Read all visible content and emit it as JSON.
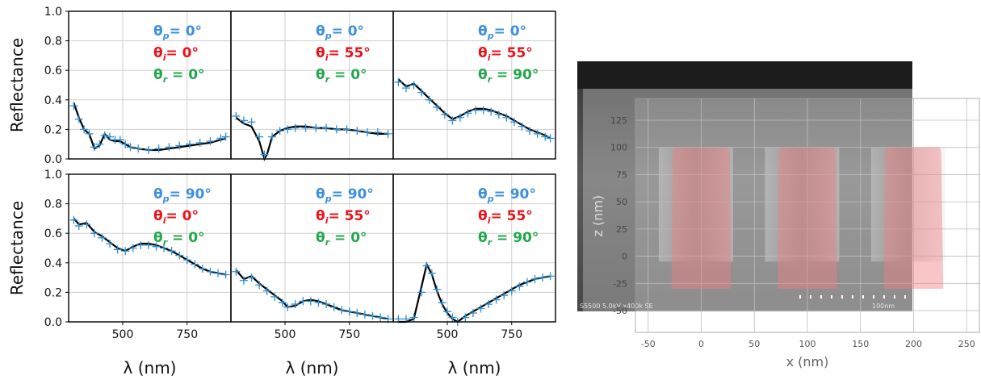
{
  "colors": {
    "measured": "#2f8fd3",
    "simulated": "#000000",
    "theta_p": "#3d8fe0",
    "theta_i": "#e8141b",
    "theta_r": "#22a84a",
    "profile_fill": "#f08080",
    "sem_bg": "#4a4a4a"
  },
  "grid": {
    "x_label": "λ (nm)",
    "y_label": "Reflectance",
    "x_ticks": [
      "500",
      "750"
    ],
    "y_ticks": [
      "0.0",
      "0.2",
      "0.4",
      "0.6",
      "0.8",
      "1.0"
    ]
  },
  "chart_data": [
    {
      "type": "line",
      "panel": "top-left",
      "xlim": [
        290,
        920
      ],
      "ylim": [
        0,
        1
      ],
      "legend": {
        "p": "θ_p= 0°",
        "i": "θ_i= 0°",
        "r": "θ_r = 0°"
      },
      "series": [
        {
          "name": "",
          "style": "markers",
          "x": [
            310,
            330,
            350,
            370,
            390,
            410,
            430,
            450,
            470,
            490,
            510,
            530,
            560,
            600,
            640,
            680,
            720,
            760,
            800,
            840,
            880,
            900
          ],
          "y": [
            0.36,
            0.27,
            0.2,
            0.17,
            0.08,
            0.1,
            0.16,
            0.15,
            0.13,
            0.13,
            0.1,
            0.08,
            0.07,
            0.06,
            0.07,
            0.08,
            0.09,
            0.1,
            0.11,
            0.12,
            0.14,
            0.15
          ]
        },
        {
          "name": "",
          "style": "line",
          "x": [
            310,
            330,
            350,
            370,
            390,
            410,
            430,
            450,
            470,
            490,
            510,
            530,
            560,
            600,
            640,
            680,
            720,
            760,
            800,
            840,
            880,
            900
          ],
          "y": [
            0.38,
            0.28,
            0.2,
            0.17,
            0.07,
            0.09,
            0.17,
            0.13,
            0.12,
            0.12,
            0.1,
            0.08,
            0.07,
            0.06,
            0.06,
            0.07,
            0.08,
            0.09,
            0.1,
            0.11,
            0.13,
            0.14
          ]
        }
      ]
    },
    {
      "type": "line",
      "panel": "top-middle",
      "xlim": [
        290,
        920
      ],
      "ylim": [
        0,
        1
      ],
      "legend": {
        "p": "θ_p= 0°",
        "i": "θ_i= 55°",
        "r": "θ_r = 0°"
      },
      "series": [
        {
          "name": "",
          "style": "markers",
          "x": [
            310,
            340,
            370,
            400,
            420,
            450,
            480,
            510,
            540,
            580,
            620,
            660,
            700,
            740,
            780,
            820,
            860,
            900
          ],
          "y": [
            0.29,
            0.26,
            0.25,
            0.15,
            0.03,
            0.15,
            0.19,
            0.2,
            0.21,
            0.21,
            0.21,
            0.21,
            0.2,
            0.2,
            0.19,
            0.18,
            0.18,
            0.17
          ]
        },
        {
          "name": "",
          "style": "line",
          "x": [
            310,
            340,
            370,
            400,
            420,
            430,
            450,
            480,
            510,
            540,
            580,
            620,
            660,
            700,
            740,
            780,
            820,
            860,
            900
          ],
          "y": [
            0.28,
            0.24,
            0.22,
            0.12,
            0.0,
            0.03,
            0.15,
            0.19,
            0.21,
            0.22,
            0.22,
            0.21,
            0.21,
            0.2,
            0.2,
            0.19,
            0.18,
            0.17,
            0.17
          ]
        }
      ]
    },
    {
      "type": "line",
      "panel": "top-right",
      "xlim": [
        290,
        920
      ],
      "ylim": [
        0,
        1
      ],
      "legend": {
        "p": "θ_p= 0°",
        "i": "θ_i= 55°",
        "r": "θ_r = 90°"
      },
      "series": [
        {
          "name": "",
          "style": "markers",
          "x": [
            310,
            340,
            370,
            400,
            430,
            460,
            490,
            520,
            550,
            580,
            610,
            640,
            670,
            700,
            730,
            760,
            790,
            820,
            850,
            880,
            900
          ],
          "y": [
            0.52,
            0.48,
            0.5,
            0.45,
            0.4,
            0.35,
            0.3,
            0.26,
            0.28,
            0.31,
            0.33,
            0.33,
            0.32,
            0.3,
            0.28,
            0.25,
            0.22,
            0.19,
            0.17,
            0.15,
            0.14
          ]
        },
        {
          "name": "",
          "style": "line",
          "x": [
            310,
            340,
            370,
            400,
            430,
            460,
            490,
            520,
            550,
            580,
            610,
            640,
            670,
            700,
            730,
            760,
            790,
            820,
            850,
            880,
            900
          ],
          "y": [
            0.54,
            0.49,
            0.51,
            0.46,
            0.41,
            0.36,
            0.31,
            0.27,
            0.29,
            0.32,
            0.34,
            0.34,
            0.33,
            0.31,
            0.29,
            0.26,
            0.23,
            0.2,
            0.18,
            0.16,
            0.14
          ]
        }
      ]
    },
    {
      "type": "line",
      "panel": "bottom-left",
      "xlim": [
        290,
        920
      ],
      "ylim": [
        0,
        1
      ],
      "legend": {
        "p": "θ_p= 90°",
        "i": "θ_i= 0°",
        "r": "θ_r = 0°"
      },
      "series": [
        {
          "name": "",
          "style": "markers",
          "x": [
            310,
            330,
            360,
            390,
            420,
            450,
            480,
            510,
            540,
            570,
            600,
            630,
            660,
            690,
            720,
            750,
            780,
            810,
            840,
            870,
            900
          ],
          "y": [
            0.69,
            0.65,
            0.66,
            0.6,
            0.57,
            0.53,
            0.49,
            0.48,
            0.5,
            0.52,
            0.52,
            0.51,
            0.5,
            0.48,
            0.45,
            0.42,
            0.39,
            0.36,
            0.34,
            0.33,
            0.32
          ]
        },
        {
          "name": "",
          "style": "line",
          "x": [
            310,
            330,
            360,
            390,
            420,
            450,
            480,
            510,
            540,
            570,
            600,
            630,
            660,
            690,
            720,
            750,
            780,
            810,
            840,
            870,
            900
          ],
          "y": [
            0.7,
            0.66,
            0.67,
            0.61,
            0.58,
            0.54,
            0.5,
            0.48,
            0.51,
            0.53,
            0.53,
            0.52,
            0.5,
            0.48,
            0.45,
            0.42,
            0.39,
            0.36,
            0.34,
            0.33,
            0.32
          ]
        }
      ]
    },
    {
      "type": "line",
      "panel": "bottom-middle",
      "xlim": [
        290,
        920
      ],
      "ylim": [
        0,
        1
      ],
      "legend": {
        "p": "θ_p= 90°",
        "i": "θ_i= 55°",
        "r": "θ_r = 0°"
      },
      "series": [
        {
          "name": "",
          "style": "markers",
          "x": [
            310,
            340,
            370,
            400,
            430,
            460,
            490,
            510,
            540,
            570,
            600,
            630,
            660,
            690,
            720,
            750,
            780,
            810,
            840,
            870,
            900
          ],
          "y": [
            0.34,
            0.28,
            0.3,
            0.25,
            0.21,
            0.17,
            0.13,
            0.1,
            0.12,
            0.14,
            0.14,
            0.13,
            0.12,
            0.1,
            0.08,
            0.07,
            0.06,
            0.05,
            0.04,
            0.03,
            0.02
          ]
        },
        {
          "name": "",
          "style": "line",
          "x": [
            310,
            340,
            370,
            400,
            430,
            460,
            490,
            510,
            540,
            570,
            600,
            630,
            660,
            690,
            720,
            750,
            780,
            810,
            840,
            870,
            900
          ],
          "y": [
            0.35,
            0.29,
            0.31,
            0.26,
            0.22,
            0.18,
            0.14,
            0.1,
            0.11,
            0.14,
            0.15,
            0.14,
            0.12,
            0.1,
            0.08,
            0.07,
            0.06,
            0.05,
            0.04,
            0.03,
            0.02
          ]
        }
      ]
    },
    {
      "type": "line",
      "panel": "bottom-right",
      "xlim": [
        290,
        920
      ],
      "ylim": [
        0,
        1
      ],
      "legend": {
        "p": "θ_p= 90°",
        "i": "θ_i= 55°",
        "r": "θ_r = 90°"
      },
      "series": [
        {
          "name": "",
          "style": "markers",
          "x": [
            310,
            340,
            370,
            400,
            420,
            440,
            460,
            480,
            500,
            520,
            540,
            570,
            600,
            630,
            660,
            690,
            720,
            750,
            780,
            810,
            840,
            870,
            900
          ],
          "y": [
            0.02,
            0.02,
            0.03,
            0.2,
            0.38,
            0.33,
            0.22,
            0.13,
            0.07,
            0.03,
            0.0,
            0.03,
            0.06,
            0.09,
            0.12,
            0.15,
            0.18,
            0.21,
            0.24,
            0.27,
            0.29,
            0.3,
            0.31
          ]
        },
        {
          "name": "",
          "style": "line",
          "x": [
            310,
            340,
            370,
            400,
            420,
            440,
            460,
            480,
            500,
            520,
            540,
            570,
            600,
            630,
            660,
            690,
            720,
            750,
            780,
            810,
            840,
            870,
            900
          ],
          "y": [
            0.0,
            0.0,
            0.02,
            0.24,
            0.39,
            0.32,
            0.21,
            0.12,
            0.06,
            0.02,
            0.0,
            0.04,
            0.07,
            0.1,
            0.13,
            0.16,
            0.19,
            0.22,
            0.25,
            0.27,
            0.29,
            0.3,
            0.31
          ]
        }
      ]
    },
    {
      "type": "area",
      "panel": "profile-overlay",
      "xlabel": "x (nm)",
      "ylabel": "z (nm)",
      "xlim": [
        -62,
        262
      ],
      "ylim": [
        -70,
        145
      ],
      "x_ticks": [
        "-50",
        "0",
        "50",
        "100",
        "150",
        "200",
        "250"
      ],
      "y_ticks": [
        "125",
        "100",
        "75",
        "50",
        "25",
        "0",
        "-25",
        "-50"
      ],
      "profile": {
        "x": [
          -28,
          -27,
          -25,
          25,
          27,
          28,
          72,
          73,
          75,
          125,
          127,
          128,
          172,
          173,
          175,
          225,
          226,
          228,
          250
        ],
        "z": [
          -30,
          95,
          100,
          100,
          95,
          -30,
          -30,
          95,
          100,
          100,
          95,
          -30,
          -30,
          95,
          100,
          100,
          95,
          -30,
          -30
        ],
        "base_z": -30
      },
      "sem_caption": "S5500 5.0kV x400k SE",
      "scale_bar_label": "100nm"
    }
  ]
}
